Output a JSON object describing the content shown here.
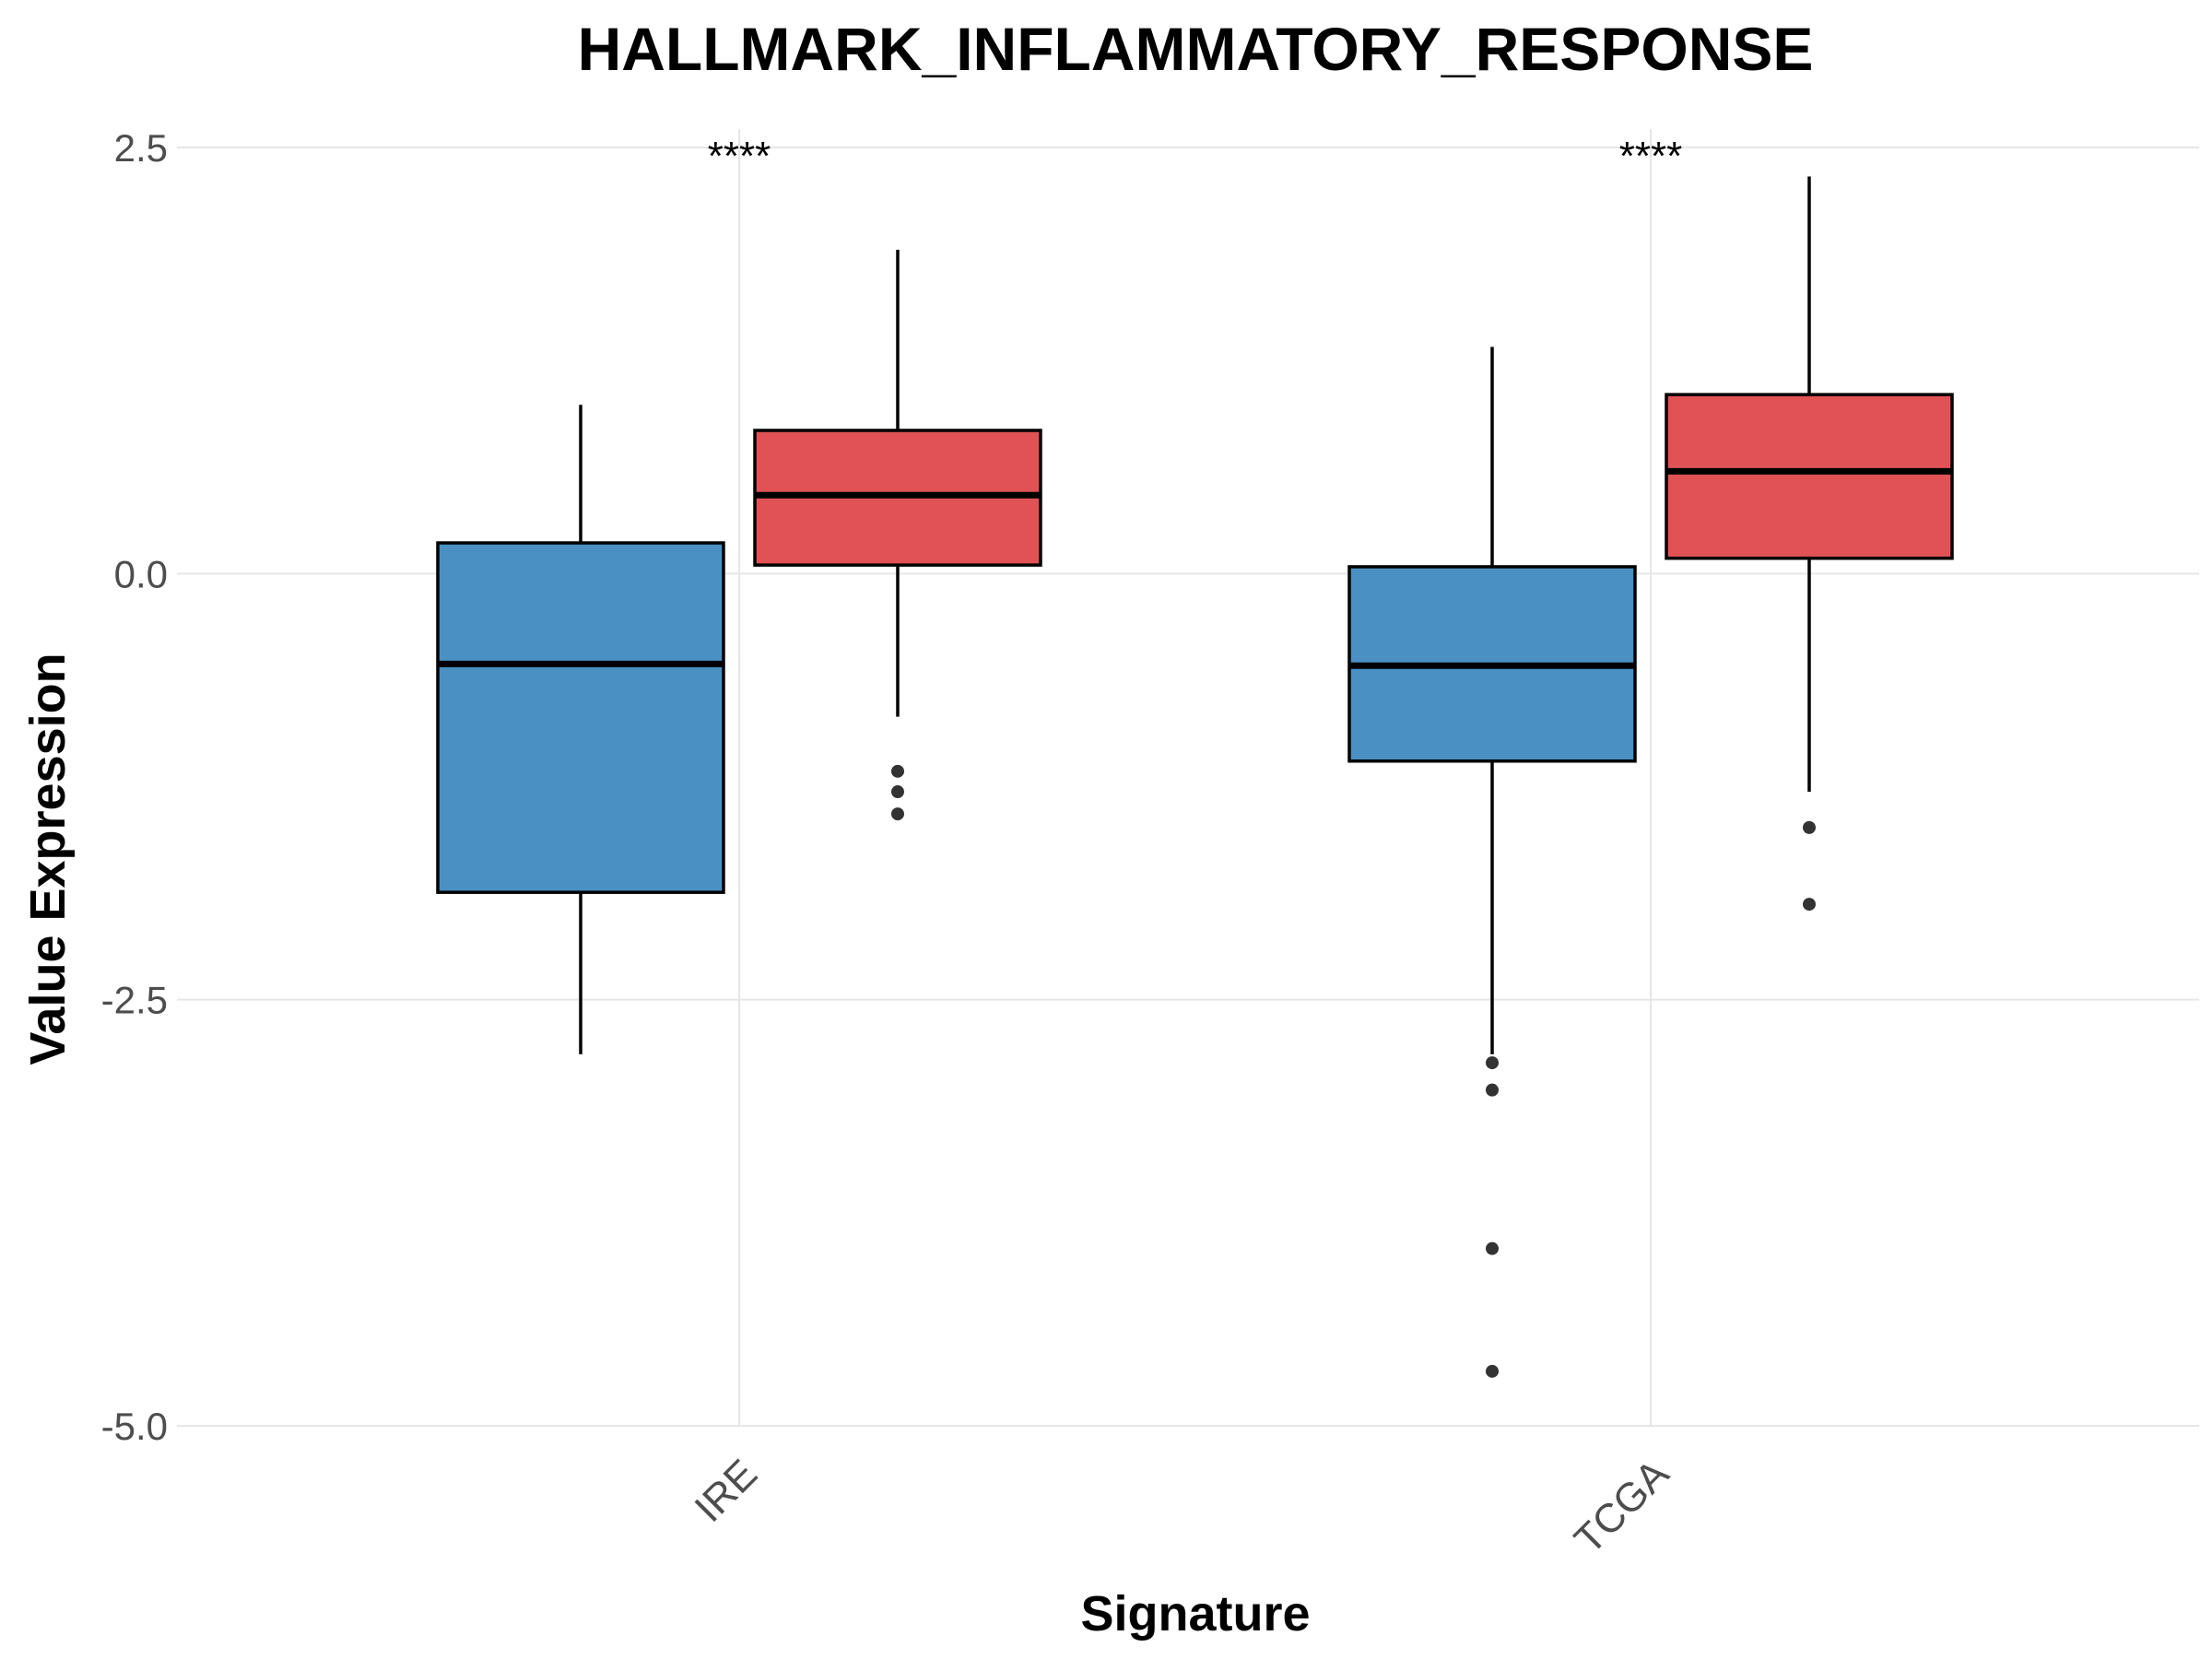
{
  "chart_data": {
    "type": "box",
    "title": "HALLMARK_INFLAMMATORY_RESPONSE",
    "xlabel": "Signature",
    "ylabel": "Value Expression",
    "ylim": [
      -5.0,
      2.5
    ],
    "yticks": [
      {
        "value": 2.5,
        "label": "2.5"
      },
      {
        "value": 0.0,
        "label": "0.0"
      },
      {
        "value": -2.5,
        "label": "-2.5"
      },
      {
        "value": -5.0,
        "label": "-5.0"
      }
    ],
    "categories": [
      "IRE",
      "TCGA"
    ],
    "grid": true,
    "legend": "none",
    "colors": {
      "group_a": "#4a90c2",
      "group_b": "#e05254"
    },
    "groups": [
      {
        "category": "IRE",
        "significance": "****",
        "boxes": [
          {
            "color": "#4a90c2",
            "whisker_low": -2.82,
            "q1": -1.87,
            "median": -0.53,
            "q3": 0.18,
            "whisker_high": 0.99,
            "outliers": []
          },
          {
            "color": "#e05254",
            "whisker_low": -0.84,
            "q1": 0.05,
            "median": 0.46,
            "q3": 0.84,
            "whisker_high": 1.9,
            "outliers": [
              -1.16,
              -1.28,
              -1.41
            ]
          }
        ]
      },
      {
        "category": "TCGA",
        "significance": "****",
        "boxes": [
          {
            "color": "#4a90c2",
            "whisker_low": -2.82,
            "q1": -1.1,
            "median": -0.54,
            "q3": 0.04,
            "whisker_high": 1.33,
            "outliers": [
              -2.87,
              -3.03,
              -3.96,
              -4.68
            ]
          },
          {
            "color": "#e05254",
            "whisker_low": -1.28,
            "q1": 0.09,
            "median": 0.6,
            "q3": 1.05,
            "whisker_high": 2.33,
            "outliers": [
              -1.49,
              -1.94
            ]
          }
        ]
      }
    ]
  }
}
